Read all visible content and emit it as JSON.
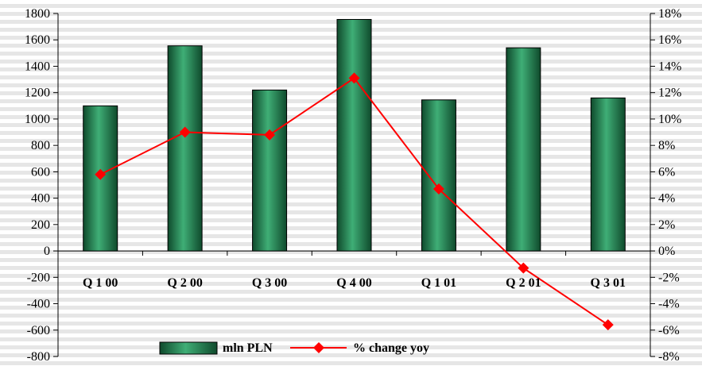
{
  "chart_data": {
    "type": "bar",
    "categories": [
      "Q 1 00",
      "Q 2 00",
      "Q 3 00",
      "Q 4 00",
      "Q 1 01",
      "Q 2 01",
      "Q 3 01"
    ],
    "series": [
      {
        "name": "mln PLN",
        "type": "bar",
        "axis": "left",
        "values": [
          1100,
          1555,
          1220,
          1755,
          1145,
          1540,
          1160
        ]
      },
      {
        "name": "% change yoy",
        "type": "line",
        "axis": "right",
        "unit": "%",
        "values": [
          5.8,
          9.0,
          8.8,
          13.1,
          4.7,
          -1.3,
          -5.6
        ]
      }
    ],
    "y_left": {
      "min": -800,
      "max": 1800,
      "step": 200,
      "tick_labels": [
        "-800",
        "-600",
        "-400",
        "-200",
        "0",
        "200",
        "400",
        "600",
        "800",
        "1000",
        "1200",
        "1400",
        "1600",
        "1800"
      ]
    },
    "y_right": {
      "min": -8,
      "max": 18,
      "step": 2,
      "tick_labels": [
        "-8%",
        "-6%",
        "-4%",
        "-2%",
        "0%",
        "2%",
        "4%",
        "6%",
        "8%",
        "10%",
        "12%",
        "14%",
        "16%",
        "18%"
      ]
    },
    "legend": {
      "placement": "bottom-center",
      "bar_label": "mln PLN",
      "line_label": "% change yoy"
    },
    "grid": false,
    "colors": {
      "bar_dark": "#0f4a2c",
      "bar_mid": "#3fae76",
      "line": "#ff0000",
      "marker": "#ff0000"
    }
  }
}
